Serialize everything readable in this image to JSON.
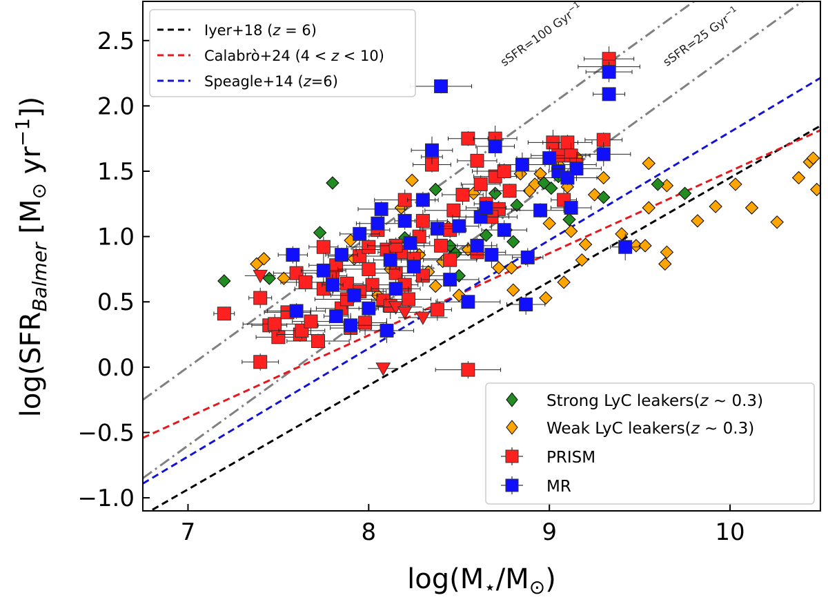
{
  "chart_data": {
    "type": "scatter",
    "xlabel": "log(M⋆/M⊙)",
    "ylabel": "log(SFRBalmer [M⊙ yr−1])",
    "ylabel_parts": {
      "pre": "log(SFR",
      "sub": "Balmer",
      "mid": " [M",
      "sun_sub": "⊙",
      "unit": " yr",
      "sup": "−1",
      "post": "])"
    },
    "xlabel_parts": {
      "pre": "log(M",
      "sub1": "⋆",
      "mid": "/M",
      "sub2": "⊙",
      "post": ")"
    },
    "xlim": [
      6.75,
      10.5
    ],
    "ylim": [
      -1.1,
      2.8
    ],
    "xticks": [
      7,
      8,
      9,
      10
    ],
    "xtick_labels": [
      "7",
      "8",
      "9",
      "10"
    ],
    "yticks": [
      -1.0,
      -0.5,
      0.0,
      0.5,
      1.0,
      1.5,
      2.0,
      2.5
    ],
    "ytick_labels": [
      "−1.0",
      "−0.5",
      "0.0",
      "0.5",
      "1.0",
      "1.5",
      "2.0",
      "2.5"
    ],
    "relations": [
      {
        "name": "Iyer+18 (z = 6)",
        "label_pre": "Iyer+18 (",
        "label_math": "z",
        "label_post": " = 6)",
        "color": "#000000",
        "slope": 0.795,
        "intercept": -6.5
      },
      {
        "name": "Calabrò+24 (4 < z < 10)",
        "label_pre": "Calabrò+24 (4 < ",
        "label_math": "z",
        "label_post": " < 10)",
        "color": "#e8171c",
        "slope": 0.628,
        "intercept": -4.78
      },
      {
        "name": "Speagle+14 (z=6)",
        "label_pre": "Speagle+14 (",
        "label_math": "z",
        "label_post": "=6)",
        "color": "#1313d6",
        "slope": 0.828,
        "intercept": -6.48
      }
    ],
    "ssfr_lines": [
      {
        "label": "sSFR=100 Gyr⁻¹",
        "label_text": "sSFR=100 Gyr",
        "label_sup": "−1",
        "color": "#808080",
        "slope": 1.0,
        "intercept": -7.0,
        "label_x": 8.75,
        "label_y": 2.3
      },
      {
        "label": "sSFR=25 Gyr⁻¹",
        "label_text": "sSFR=25 Gyr",
        "label_sup": "−1",
        "color": "#808080",
        "slope": 1.0,
        "intercept": -7.6,
        "label_x": 9.65,
        "label_y": 2.3
      }
    ],
    "series": [
      {
        "name": "Strong LyC leakers(z ~ 0.3)",
        "legend_pre": "Strong LyC leakers(",
        "legend_math": "z",
        "legend_post": " ~ 0.3)",
        "marker": "diamond",
        "color": "#228b22",
        "points": [
          [
            7.2,
            0.66
          ],
          [
            7.45,
            0.68
          ],
          [
            7.73,
            1.03
          ],
          [
            7.8,
            1.41
          ],
          [
            8.2,
            0.99
          ],
          [
            8.37,
            1.36
          ],
          [
            8.45,
            0.93
          ],
          [
            8.5,
            0.7
          ],
          [
            8.48,
            0.87
          ],
          [
            8.65,
            1.01
          ],
          [
            8.7,
            1.33
          ],
          [
            8.82,
            1.24
          ],
          [
            8.97,
            1.41
          ],
          [
            9.01,
            1.37
          ],
          [
            9.11,
            1.13
          ],
          [
            9.3,
            1.3
          ],
          [
            9.6,
            1.4
          ],
          [
            9.75,
            1.33
          ],
          [
            8.8,
            0.96
          ],
          [
            9.05,
            1.46
          ]
        ]
      },
      {
        "name": "Weak LyC leakers(z ~ 0.3)",
        "legend_pre": "Weak LyC leakers(",
        "legend_math": "z",
        "legend_post": " ~ 0.3)",
        "marker": "diamond",
        "color": "#ffa500",
        "points": [
          [
            7.38,
            0.79
          ],
          [
            7.42,
            0.83
          ],
          [
            7.53,
            0.68
          ],
          [
            7.9,
            0.97
          ],
          [
            8.18,
            1.22
          ],
          [
            8.24,
            1.43
          ],
          [
            8.28,
            0.86
          ],
          [
            8.33,
            0.73
          ],
          [
            8.37,
            0.62
          ],
          [
            8.41,
            0.81
          ],
          [
            8.44,
            1.07
          ],
          [
            8.5,
            0.55
          ],
          [
            8.55,
            0.9
          ],
          [
            8.62,
            1.17
          ],
          [
            8.68,
            1.19
          ],
          [
            8.72,
            0.76
          ],
          [
            8.76,
            1.05
          ],
          [
            8.79,
            0.76
          ],
          [
            8.8,
            0.59
          ],
          [
            8.84,
            1.48
          ],
          [
            8.89,
            1.35
          ],
          [
            8.92,
            1.4
          ],
          [
            8.95,
            1.48
          ],
          [
            9.0,
            1.1
          ],
          [
            8.98,
            0.53
          ],
          [
            9.08,
            0.65
          ],
          [
            9.1,
            1.38
          ],
          [
            9.12,
            1.04
          ],
          [
            9.15,
            1.61
          ],
          [
            9.18,
            0.82
          ],
          [
            9.2,
            0.94
          ],
          [
            9.25,
            1.32
          ],
          [
            9.3,
            1.45
          ],
          [
            9.4,
            1.02
          ],
          [
            9.48,
            0.93
          ],
          [
            9.55,
            1.56
          ],
          [
            9.53,
            0.93
          ],
          [
            9.55,
            1.22
          ],
          [
            9.65,
            1.39
          ],
          [
            9.65,
            0.88
          ],
          [
            9.64,
            0.79
          ],
          [
            9.82,
            1.12
          ],
          [
            9.92,
            1.23
          ],
          [
            10.03,
            1.4
          ],
          [
            10.12,
            1.22
          ],
          [
            10.26,
            1.11
          ],
          [
            10.38,
            1.45
          ],
          [
            10.44,
            1.57
          ],
          [
            10.46,
            1.6
          ],
          [
            10.48,
            1.36
          ],
          [
            8.12,
            0.75
          ],
          [
            8.05,
            0.55
          ],
          [
            7.92,
            0.83
          ],
          [
            8.58,
            1.33
          ],
          [
            9.05,
            1.55
          ]
        ]
      },
      {
        "name": "PRISM",
        "marker": "square",
        "color": "#ff2020",
        "points": [
          [
            7.2,
            0.41
          ],
          [
            7.4,
            0.53
          ],
          [
            7.4,
            0.04
          ],
          [
            7.45,
            0.32
          ],
          [
            7.48,
            0.33
          ],
          [
            7.5,
            0.23
          ],
          [
            7.55,
            0.42
          ],
          [
            7.6,
            0.72
          ],
          [
            7.62,
            0.25
          ],
          [
            7.63,
            0.28
          ],
          [
            7.68,
            0.35
          ],
          [
            7.72,
            0.2
          ],
          [
            7.75,
            0.6
          ],
          [
            7.8,
            0.7
          ],
          [
            7.82,
            0.78
          ],
          [
            7.85,
            0.45
          ],
          [
            7.88,
            0.52
          ],
          [
            7.9,
            0.3
          ],
          [
            7.95,
            0.85
          ],
          [
            7.98,
            0.34
          ],
          [
            8.0,
            0.92
          ],
          [
            8.02,
            0.63
          ],
          [
            8.05,
            1.05
          ],
          [
            8.08,
            0.51
          ],
          [
            8.12,
            0.47
          ],
          [
            8.15,
            0.72
          ],
          [
            8.18,
            0.88
          ],
          [
            8.2,
            0.63
          ],
          [
            8.22,
            0.52
          ],
          [
            8.25,
            0.83
          ],
          [
            8.28,
            1.0
          ],
          [
            8.3,
            1.12
          ],
          [
            8.35,
            1.61
          ],
          [
            8.35,
            1.55
          ],
          [
            8.38,
            0.44
          ],
          [
            8.4,
            0.93
          ],
          [
            8.45,
            0.82
          ],
          [
            8.47,
            1.2
          ],
          [
            8.52,
            1.32
          ],
          [
            8.55,
            1.75
          ],
          [
            8.6,
            1.58
          ],
          [
            8.62,
            1.4
          ],
          [
            8.65,
            1.25
          ],
          [
            8.7,
            1.46
          ],
          [
            8.72,
            1.21
          ],
          [
            8.75,
            1.5
          ],
          [
            8.78,
            1.35
          ],
          [
            8.55,
            -0.02
          ],
          [
            9.02,
            1.72
          ],
          [
            9.05,
            1.62
          ],
          [
            9.1,
            1.72
          ],
          [
            9.12,
            1.62
          ],
          [
            9.15,
            1.55
          ],
          [
            9.08,
            1.28
          ],
          [
            9.3,
            1.74
          ],
          [
            9.33,
            2.36
          ],
          [
            9.33,
            2.3
          ],
          [
            7.65,
            0.65
          ],
          [
            7.75,
            0.92
          ],
          [
            8.0,
            0.75
          ],
          [
            8.1,
            0.9
          ],
          [
            8.2,
            1.28
          ],
          [
            8.3,
            0.7
          ],
          [
            8.45,
            1.05
          ],
          [
            8.6,
            0.88
          ],
          [
            8.68,
            1.15
          ],
          [
            8.7,
            1.75
          ],
          [
            7.88,
            0.64
          ],
          [
            7.95,
            0.58
          ],
          [
            8.15,
            0.93
          ]
        ]
      },
      {
        "name": "PRISM upper limits",
        "marker": "triangle-down",
        "color": "#ff2020",
        "points": [
          [
            7.4,
            0.7
          ],
          [
            8.08,
            -0.01
          ],
          [
            8.15,
            0.46
          ],
          [
            8.2,
            0.42
          ],
          [
            8.3,
            0.38
          ]
        ]
      },
      {
        "name": "MR",
        "marker": "square",
        "color": "#1010ff",
        "points": [
          [
            7.58,
            0.86
          ],
          [
            7.6,
            0.43
          ],
          [
            7.75,
            0.74
          ],
          [
            7.8,
            0.63
          ],
          [
            7.82,
            0.39
          ],
          [
            7.85,
            0.86
          ],
          [
            7.9,
            0.32
          ],
          [
            7.95,
            1.02
          ],
          [
            8.0,
            0.45
          ],
          [
            8.05,
            1.1
          ],
          [
            8.07,
            1.21
          ],
          [
            8.1,
            0.28
          ],
          [
            8.15,
            0.6
          ],
          [
            8.2,
            1.12
          ],
          [
            8.23,
            0.95
          ],
          [
            8.25,
            0.77
          ],
          [
            8.3,
            1.28
          ],
          [
            8.35,
            1.66
          ],
          [
            8.38,
            1.06
          ],
          [
            8.4,
            2.15
          ],
          [
            8.45,
            0.67
          ],
          [
            8.5,
            1.08
          ],
          [
            8.55,
            0.5
          ],
          [
            8.6,
            0.93
          ],
          [
            8.62,
            1.15
          ],
          [
            8.65,
            1.22
          ],
          [
            8.68,
            0.86
          ],
          [
            8.7,
            1.69
          ],
          [
            8.75,
            1.05
          ],
          [
            8.85,
            1.55
          ],
          [
            8.88,
            0.84
          ],
          [
            8.87,
            0.48
          ],
          [
            9.0,
            1.6
          ],
          [
            9.05,
            1.5
          ],
          [
            9.1,
            1.45
          ],
          [
            9.15,
            1.52
          ],
          [
            9.3,
            1.63
          ],
          [
            9.33,
            2.09
          ],
          [
            9.33,
            2.26
          ],
          [
            9.42,
            0.92
          ],
          [
            8.95,
            1.2
          ],
          [
            9.12,
            1.22
          ],
          [
            7.92,
            0.55
          ],
          [
            8.12,
            0.82
          ]
        ]
      }
    ],
    "legend_location": "top-left (relations), bottom-right (samples)",
    "legend_samples": [
      "Strong LyC leakers(z ~ 0.3)",
      "Weak LyC leakers(z ~ 0.3)",
      "PRISM",
      "MR"
    ]
  }
}
